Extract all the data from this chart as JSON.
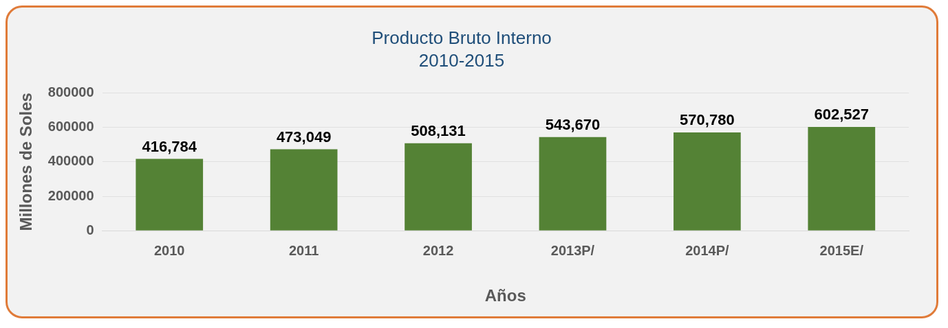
{
  "chart_data": {
    "type": "bar",
    "title": "Producto Bruto Interno",
    "subtitle": "2010-2015",
    "xlabel": "Años",
    "ylabel": "Millones de Soles",
    "categories": [
      "2010",
      "2011",
      "2012",
      "2013P/",
      "2014P/",
      "2015E/"
    ],
    "values": [
      416784,
      473049,
      508131,
      543670,
      570780,
      602527
    ],
    "value_labels": [
      "416,784",
      "473,049",
      "508,131",
      "543,670",
      "570,780",
      "602,527"
    ],
    "color": "#548235",
    "ylim": [
      0,
      800000
    ],
    "yticks": [
      0,
      200000,
      400000,
      600000,
      800000
    ],
    "grid": "y",
    "legend": false
  }
}
